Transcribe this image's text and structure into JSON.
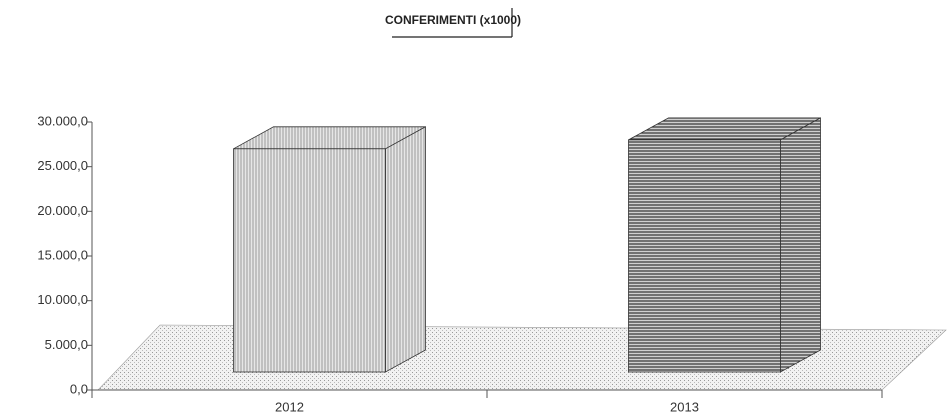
{
  "chart_data": {
    "type": "bar3d",
    "title": "CONFERIMENTI (x1000)",
    "categories": [
      "2012",
      "2013"
    ],
    "series": [
      {
        "name": "2012",
        "color": "#bbbbbb",
        "values": [
          27000,
          null
        ]
      },
      {
        "name": "2013",
        "color": "#555555",
        "values": [
          null,
          28000
        ]
      }
    ],
    "ylim": [
      0,
      30000
    ],
    "yticks": [
      {
        "value": 0,
        "label": "0,0"
      },
      {
        "value": 5000,
        "label": "5.000,0"
      },
      {
        "value": 10000,
        "label": "10.000,0"
      },
      {
        "value": 15000,
        "label": "15.000,0"
      },
      {
        "value": 20000,
        "label": "20.000,0"
      },
      {
        "value": 25000,
        "label": "25.000,0"
      },
      {
        "value": 30000,
        "label": "30.000,0"
      }
    ]
  }
}
